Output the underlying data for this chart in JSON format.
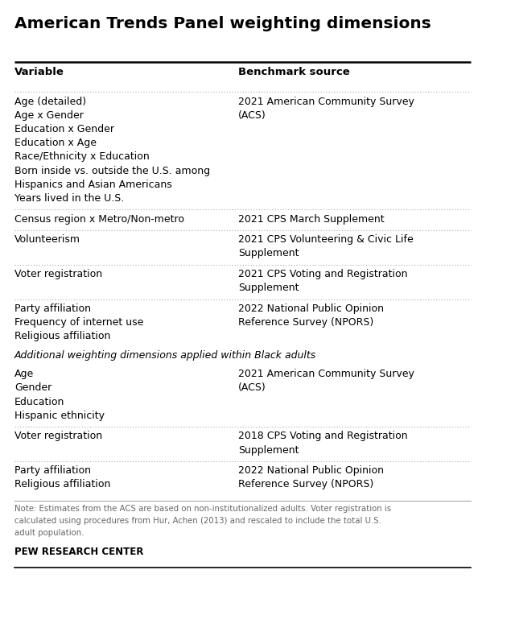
{
  "title": "American Trends Panel weighting dimensions",
  "col1_header": "Variable",
  "col2_header": "Benchmark source",
  "background_color": "#ffffff",
  "title_color": "#000000",
  "header_color": "#000000",
  "text_color": "#000000",
  "note_color": "#666666",
  "separator_color": "#aaaaaa",
  "top_line_color": "#000000",
  "bottom_line_color": "#000000",
  "rows": [
    {
      "variables": [
        "Age (detailed)",
        "Age x Gender",
        "Education x Gender",
        "Education x Age",
        "Race/Ethnicity x Education",
        "Born inside vs. outside the U.S. among\nHispanics and Asian Americans",
        "Years lived in the U.S."
      ],
      "benchmark": "2021 American Community Survey\n(ACS)",
      "separator": true
    },
    {
      "variables": [
        "Census region x Metro/Non-metro"
      ],
      "benchmark": "2021 CPS March Supplement",
      "separator": true
    },
    {
      "variables": [
        "Volunteerism"
      ],
      "benchmark": "2021 CPS Volunteering & Civic Life\nSupplement",
      "separator": true
    },
    {
      "variables": [
        "Voter registration"
      ],
      "benchmark": "2021 CPS Voting and Registration\nSupplement",
      "separator": true
    },
    {
      "variables": [
        "Party affiliation",
        "Frequency of internet use",
        "Religious affiliation"
      ],
      "benchmark": "2022 National Public Opinion\nReference Survey (NPORS)",
      "separator": false
    },
    {
      "variables": [
        "Additional weighting dimensions applied within Black adults"
      ],
      "benchmark": "",
      "separator": false,
      "italic_header": true
    },
    {
      "variables": [
        "Age",
        "Gender",
        "Education",
        "Hispanic ethnicity"
      ],
      "benchmark": "2021 American Community Survey\n(ACS)",
      "separator": true
    },
    {
      "variables": [
        "Voter registration"
      ],
      "benchmark": "2018 CPS Voting and Registration\nSupplement",
      "separator": true
    },
    {
      "variables": [
        "Party affiliation",
        "Religious affiliation"
      ],
      "benchmark": "2022 National Public Opinion\nReference Survey (NPORS)",
      "separator": false
    }
  ],
  "note": "Note: Estimates from the ACS are based on non-institutionalized adults. Voter registration is\ncalculated using procedures from Hur, Achen (2013) and rescaled to include the total U.S.\nadult population.",
  "footer": "PEW RESEARCH CENTER",
  "col_split": 0.47
}
